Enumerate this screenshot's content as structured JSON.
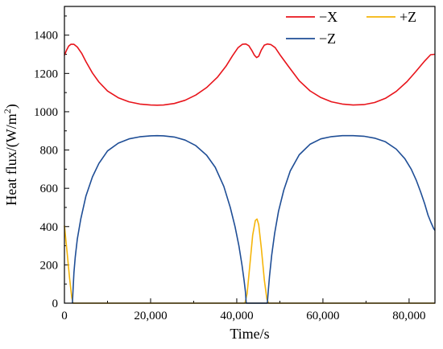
{
  "chart_data": {
    "type": "line",
    "title": "",
    "xlabel": "Time/s",
    "ylabel": "Heat flux/(W/m",
    "ylabel_sup": "2",
    "ylabel_close": ")",
    "xlim": [
      0,
      86000
    ],
    "ylim": [
      0,
      1550
    ],
    "xticks": [
      0,
      20000,
      40000,
      60000,
      80000
    ],
    "xtick_labels": [
      "0",
      "20,000",
      "40,000",
      "60,000",
      "80,000"
    ],
    "yticks": [
      0,
      200,
      400,
      600,
      800,
      1000,
      1200,
      1400
    ],
    "ytick_labels": [
      "0",
      "200",
      "400",
      "600",
      "800",
      "1000",
      "1200",
      "1400"
    ],
    "grid": false,
    "legend_position": "top-right",
    "series": [
      {
        "name": "−X",
        "color": "#e8141b",
        "x": [
          0,
          500,
          1000,
          1500,
          2200,
          3000,
          4000,
          5000,
          6500,
          8000,
          10000,
          12500,
          15000,
          17500,
          20000,
          21500,
          23000,
          25500,
          28000,
          30500,
          33000,
          35500,
          37500,
          39000,
          40300,
          41300,
          42100,
          42800,
          43500,
          44100,
          44600,
          45100,
          45700,
          46400,
          47100,
          47900,
          48900,
          50200,
          52000,
          54500,
          57000,
          59500,
          62000,
          64500,
          67000,
          69500,
          72000,
          74500,
          77000,
          79500,
          81500,
          83500,
          85000,
          86000
        ],
        "values": [
          1295,
          1322,
          1343,
          1352,
          1352,
          1338,
          1305,
          1262,
          1202,
          1155,
          1108,
          1073,
          1052,
          1040,
          1035,
          1034,
          1035,
          1043,
          1060,
          1087,
          1126,
          1180,
          1238,
          1292,
          1335,
          1352,
          1354,
          1345,
          1320,
          1295,
          1283,
          1290,
          1322,
          1348,
          1354,
          1351,
          1335,
          1292,
          1237,
          1162,
          1109,
          1074,
          1052,
          1040,
          1035,
          1037,
          1048,
          1070,
          1106,
          1157,
          1208,
          1262,
          1298,
          1300
        ]
      },
      {
        "name": "+Z",
        "color": "#f5b50a",
        "x": [
          0,
          600,
          1200,
          1700,
          2000,
          41900,
          42400,
          43000,
          43700,
          44300,
          44700,
          45100,
          45700,
          46400,
          47000,
          47400,
          86000
        ],
        "values": [
          405,
          270,
          130,
          30,
          0,
          0,
          50,
          190,
          355,
          432,
          440,
          410,
          290,
          120,
          20,
          0,
          0
        ]
      },
      {
        "name": "−Z",
        "color": "#1f4e96",
        "x": [
          1850,
          2000,
          2200,
          2500,
          3000,
          3800,
          5000,
          6500,
          8000,
          10000,
          12500,
          15000,
          17500,
          20000,
          21500,
          23000,
          25500,
          28000,
          30500,
          33000,
          35000,
          37000,
          38500,
          39600,
          40500,
          41200,
          41700,
          42000,
          42200,
          47100,
          47300,
          47600,
          48100,
          48800,
          49700,
          50900,
          52400,
          54500,
          57000,
          59500,
          62000,
          64500,
          67000,
          69500,
          72000,
          74500,
          77000,
          79000,
          80500,
          81700,
          82700,
          83600,
          84400,
          85100,
          85700,
          86000
        ],
        "values": [
          0,
          70,
          160,
          240,
          335,
          440,
          560,
          660,
          730,
          795,
          836,
          858,
          869,
          874,
          875,
          874,
          868,
          852,
          823,
          773,
          710,
          610,
          500,
          400,
          300,
          200,
          120,
          60,
          0,
          0,
          60,
          140,
          250,
          365,
          480,
          590,
          690,
          775,
          830,
          858,
          870,
          875,
          875,
          872,
          862,
          843,
          805,
          755,
          700,
          640,
          580,
          520,
          460,
          420,
          390,
          380
        ]
      }
    ]
  }
}
